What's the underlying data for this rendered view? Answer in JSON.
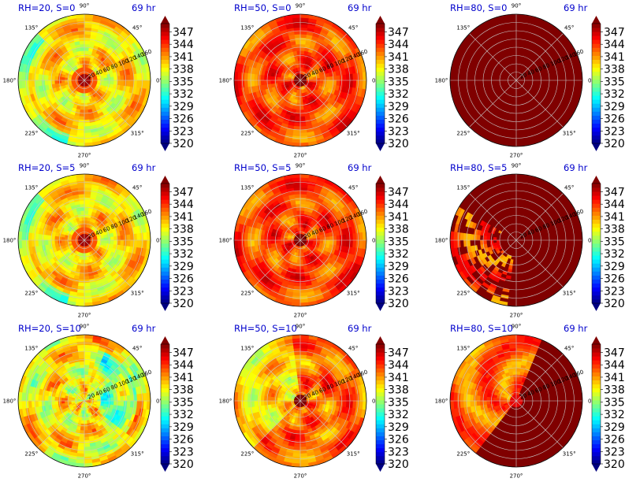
{
  "chart_data": {
    "type": "heatmap",
    "layout": {
      "rows": 3,
      "cols": 3
    },
    "panels": [
      {
        "title": "RH=20, S=0",
        "time": "69 hr",
        "pattern": "dry-spiral",
        "seed": 3
      },
      {
        "title": "RH=50, S=0",
        "time": "69 hr",
        "pattern": "moist-spiral",
        "seed": 7
      },
      {
        "title": "RH=80, S=0",
        "time": "69 hr",
        "pattern": "saturated",
        "seed": 11
      },
      {
        "title": "RH=20, S=5",
        "time": "69 hr",
        "pattern": "dry-spiral",
        "seed": 13
      },
      {
        "title": "RH=50, S=5",
        "time": "69 hr",
        "pattern": "moist-spiral",
        "seed": 17
      },
      {
        "title": "RH=80, S=5",
        "time": "69 hr",
        "pattern": "saturated-sheared",
        "seed": 19
      },
      {
        "title": "RH=20, S=10",
        "time": "69 hr",
        "pattern": "dry-sheared",
        "seed": 23
      },
      {
        "title": "RH=50, S=10",
        "time": "69 hr",
        "pattern": "moist-sheared",
        "seed": 29
      },
      {
        "title": "RH=80, S=10",
        "time": "69 hr",
        "pattern": "saturated-sheared-strong",
        "seed": 31
      }
    ],
    "angle_labels": [
      "90°",
      "45°",
      "0°",
      "315°",
      "270°",
      "225°",
      "180°",
      "135°"
    ],
    "angle_values": [
      90,
      45,
      0,
      315,
      270,
      225,
      180,
      135
    ],
    "radial_labels": [
      "20",
      "40",
      "60",
      "80",
      "100",
      "120",
      "140",
      "160"
    ],
    "radial_values": [
      20,
      40,
      60,
      80,
      100,
      120,
      140,
      160
    ],
    "radial_label_angle_deg": 22.5,
    "colorbar": {
      "colormap": "jet",
      "min": 320,
      "max": 349,
      "ticks": [
        "320",
        "323",
        "326",
        "329",
        "332",
        "335",
        "338",
        "341",
        "344",
        "347"
      ],
      "tick_values": [
        320,
        323,
        326,
        329,
        332,
        335,
        338,
        341,
        344,
        347
      ],
      "extend": "both"
    },
    "grid": true
  }
}
